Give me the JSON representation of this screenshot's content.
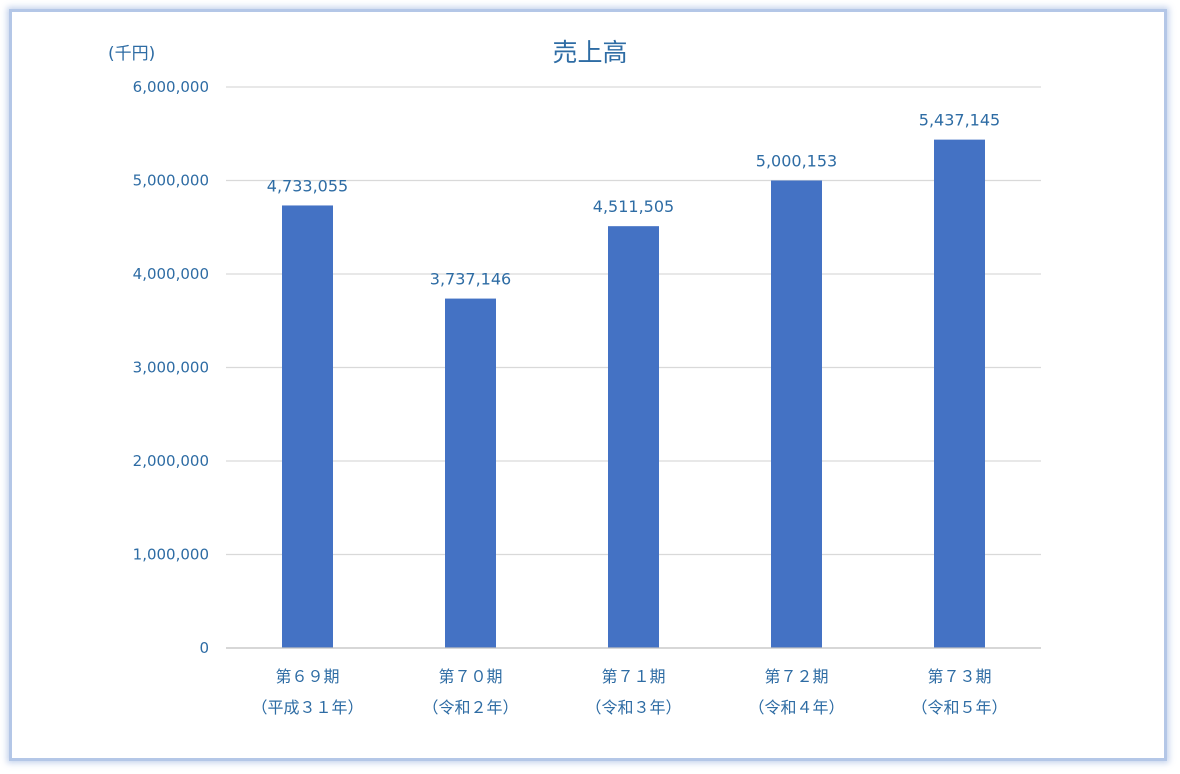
{
  "chart_data": {
    "type": "bar",
    "title": "売上高",
    "unit_label": "(千円)",
    "categories": [
      {
        "line1": "第６９期",
        "line2": "（平成３１年）"
      },
      {
        "line1": "第７０期",
        "line2": "（令和２年）"
      },
      {
        "line1": "第７１期",
        "line2": "（令和３年）"
      },
      {
        "line1": "第７２期",
        "line2": "（令和４年）"
      },
      {
        "line1": "第７３期",
        "line2": "（令和５年）"
      }
    ],
    "values": [
      4733055,
      3737146,
      4511505,
      5000153,
      5437145
    ],
    "data_labels": [
      "4,733,055",
      "3,737,146",
      "4,511,505",
      "5,000,153",
      "5,437,145"
    ],
    "ylim": [
      0,
      6000000
    ],
    "yticks": [
      {
        "value": 0,
        "label": "0"
      },
      {
        "value": 1000000,
        "label": "1,000,000"
      },
      {
        "value": 2000000,
        "label": "2,000,000"
      },
      {
        "value": 3000000,
        "label": "3,000,000"
      },
      {
        "value": 4000000,
        "label": "4,000,000"
      },
      {
        "value": 5000000,
        "label": "5,000,000"
      },
      {
        "value": 6000000,
        "label": "6,000,000"
      }
    ],
    "grid": true,
    "legend": "none",
    "colors": {
      "bar": "#4472c4",
      "text": "#2e6ca4",
      "frame": "#b4c7e7"
    }
  }
}
